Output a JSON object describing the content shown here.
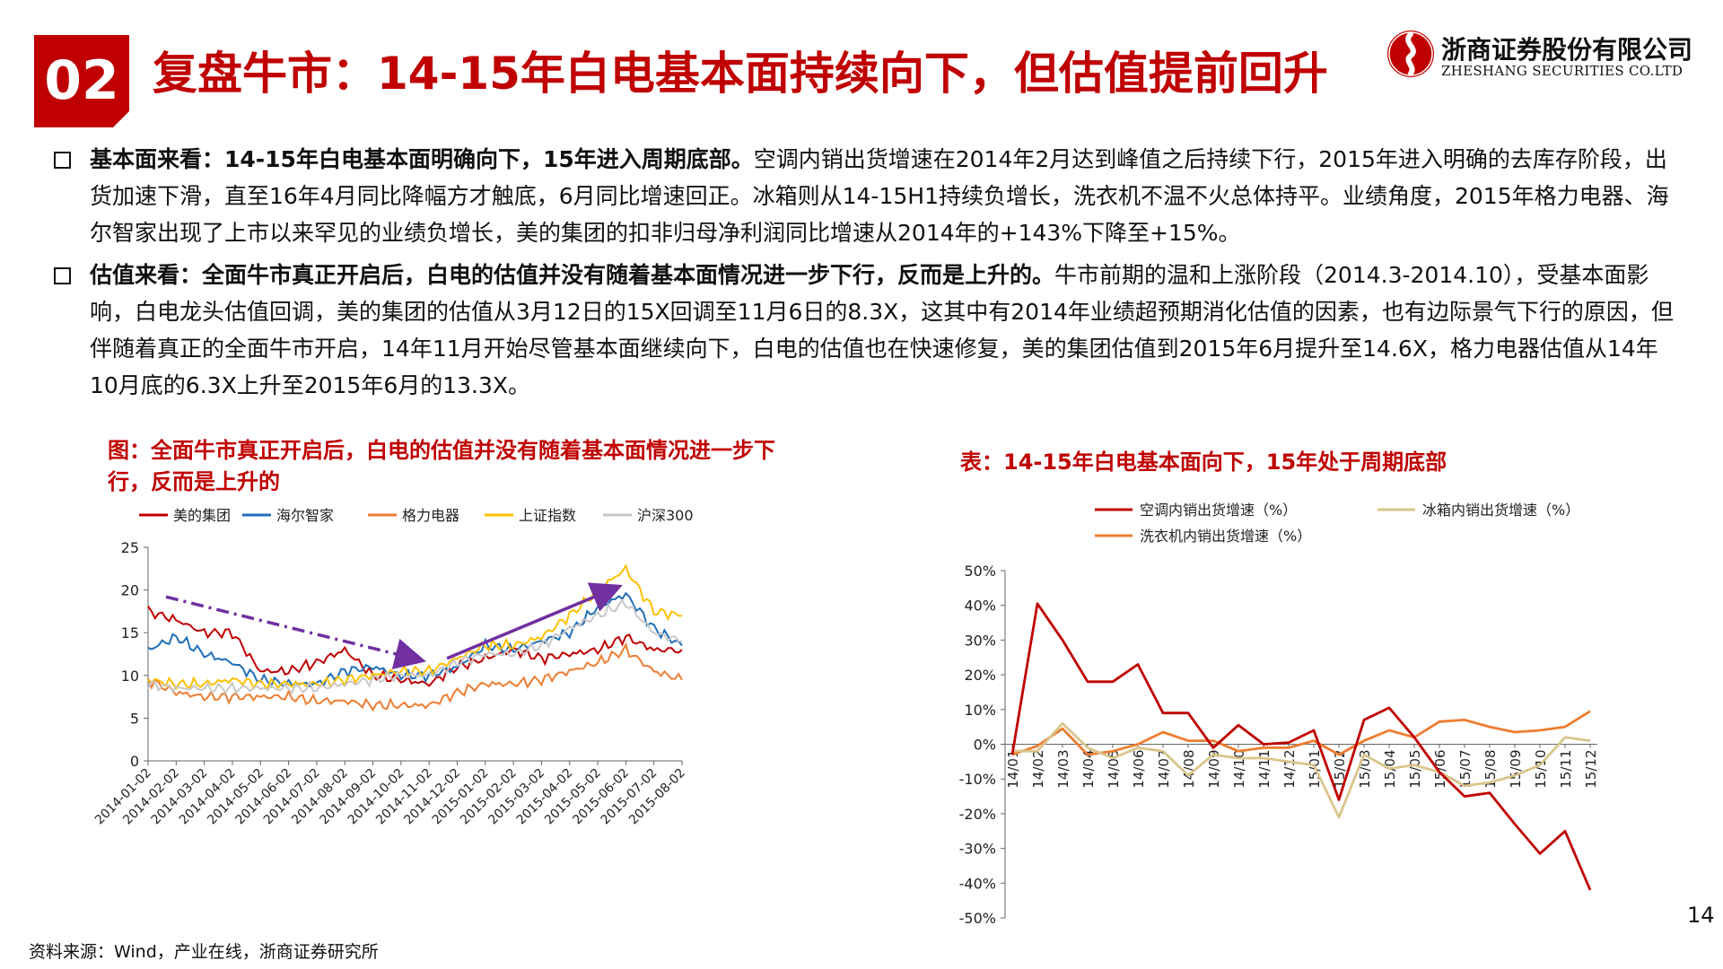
{
  "header": {
    "section_number": "02",
    "title": "复盘牛市：14-15年白电基本面持续向下，但估值提前回升"
  },
  "logo": {
    "name_cn": "浙商证券股份有限公司",
    "name_en": "ZHESHANG SECURITIES CO.LTD",
    "brand_color": "#c00000"
  },
  "bullets": [
    {
      "lead": "基本面来看：14-15年白电基本面明确向下，15年进入周期底部。",
      "body": "空调内销出货增速在2014年2月达到峰值之后持续下行，2015年进入明确的去库存阶段，出货加速下滑，直至16年4月同比降幅方才触底，6月同比增速回正。冰箱则从14-15H1持续负增长，洗衣机不温不火总体持平。业绩角度，2015年格力电器、海尔智家出现了上市以来罕见的业绩负增长，美的集团的扣非归母净利润同比增速从2014年的+143%下降至+15%。"
    },
    {
      "lead": "估值来看：全面牛市真正开启后，白电的估值并没有随着基本面情况进一步下行，反而是上升的。",
      "body": "牛市前期的温和上涨阶段（2014.3-2014.10），受基本面影响，白电龙头估值回调，美的集团的估值从3月12日的15X回调至11月6日的8.3X，这其中有2014年业绩超预期消化估值的因素，也有边际景气下行的原因，但伴随着真正的全面牛市开启，14年11月开始尽管基本面继续向下，白电的估值也在快速修复，美的集团估值到2015年6月提升至14.6X，格力电器估值从14年10月底的6.3X上升至2015年6月的13.3X。"
    }
  ],
  "left_chart_title": "图：全面牛市真正开启后，白电的估值并没有随着基本面情况进一步下行，反而是上升的",
  "right_chart_title": "表：14-15年白电基本面向下，15年处于周期底部",
  "source": "资料来源：Wind，产业在线，浙商证券研究所",
  "page_number": "14",
  "chart_data": [
    {
      "type": "line",
      "title": "全面牛市真正开启后，白电的估值并没有随着基本面情况进一步下行，反而是上升的",
      "xlabel": "",
      "ylabel": "",
      "ylim": [
        0,
        25
      ],
      "yticks": [
        "0",
        "5",
        "10",
        "15",
        "20",
        "25"
      ],
      "categories": [
        "2014-01-02",
        "2014-02-02",
        "2014-03-02",
        "2014-04-02",
        "2014-05-02",
        "2014-06-02",
        "2014-07-02",
        "2014-08-02",
        "2014-09-02",
        "2014-10-02",
        "2014-11-02",
        "2014-12-02",
        "2015-01-02",
        "2015-02-02",
        "2015-03-02",
        "2015-04-02",
        "2015-05-02",
        "2015-06-02",
        "2015-07-02",
        "2015-08-02"
      ],
      "series": [
        {
          "name": "美的集团",
          "color": "#c00000",
          "values": [
            17.5,
            16.5,
            15.0,
            15.0,
            10.5,
            10.5,
            11.5,
            13.0,
            10.0,
            9.5,
            9.0,
            11.0,
            12.0,
            13.0,
            12.0,
            12.5,
            13.0,
            14.5,
            13.0,
            13.0
          ]
        },
        {
          "name": "海尔智家",
          "color": "#1f6fb8",
          "values": [
            13.0,
            14.5,
            12.5,
            11.5,
            9.5,
            9.0,
            9.0,
            10.5,
            11.0,
            10.0,
            10.0,
            11.0,
            13.5,
            13.0,
            14.0,
            15.0,
            18.0,
            19.5,
            15.5,
            13.5
          ]
        },
        {
          "name": "格力电器",
          "color": "#ed7d31",
          "values": [
            9.5,
            8.0,
            7.5,
            7.5,
            7.5,
            7.5,
            7.0,
            7.0,
            6.5,
            6.5,
            6.5,
            8.0,
            9.0,
            9.0,
            9.5,
            10.5,
            11.5,
            13.0,
            10.5,
            9.5
          ]
        },
        {
          "name": "上证指数",
          "color": "#ffc000",
          "values": [
            9.5,
            9.0,
            9.0,
            9.5,
            9.0,
            9.0,
            9.0,
            9.5,
            10.0,
            10.5,
            10.5,
            12.0,
            13.5,
            13.5,
            14.5,
            17.0,
            20.0,
            22.5,
            17.5,
            17.0
          ]
        },
        {
          "name": "沪深300",
          "color": "#c8c8c8",
          "values": [
            9.0,
            8.5,
            8.5,
            8.5,
            8.5,
            8.5,
            8.5,
            9.0,
            9.5,
            10.0,
            10.0,
            11.5,
            12.5,
            12.5,
            13.5,
            15.5,
            17.0,
            18.5,
            15.0,
            14.0
          ]
        }
      ],
      "annotations": [
        {
          "type": "arrow",
          "style": "dash-dot",
          "color": "#7030a0",
          "from": {
            "x": "2014-01-02",
            "y": 19.2
          },
          "to": {
            "x": "2014-11-02",
            "y": 11.8
          }
        },
        {
          "type": "arrow",
          "style": "solid",
          "color": "#7030a0",
          "from": {
            "x": "2014-11-02",
            "y": 12.0
          },
          "to": {
            "x": "2015-06-02",
            "y": 20.3
          }
        }
      ]
    },
    {
      "type": "line",
      "title": "14-15年白电基本面向下，15年处于周期底部",
      "xlabel": "",
      "ylabel": "",
      "ylim": [
        -50,
        50
      ],
      "yticks": [
        "50%",
        "40%",
        "30%",
        "20%",
        "10%",
        "0%",
        "-10%",
        "-20%",
        "-30%",
        "-40%",
        "-50%"
      ],
      "categories": [
        "14/01",
        "14/02",
        "14/03",
        "14/04",
        "14/05",
        "14/06",
        "14/07",
        "14/08",
        "14/09",
        "14/10",
        "14/11",
        "14/12",
        "15/01",
        "15/02",
        "15/03",
        "15/04",
        "15/05",
        "15/06",
        "15/07",
        "15/08",
        "15/09",
        "15/10",
        "15/11",
        "15/12"
      ],
      "series": [
        {
          "name": "空调内销出货增速（%）",
          "color": "#c00000",
          "values": [
            -3,
            40.5,
            30,
            18,
            18,
            23,
            9,
            9,
            -1,
            5.5,
            0,
            0.5,
            4,
            -16,
            7,
            10.5,
            2,
            -8,
            -15,
            -14,
            -23,
            -31.5,
            -25,
            -42
          ]
        },
        {
          "name": "冰箱内销出货增速（%）",
          "color": "#d9c58a",
          "values": [
            -2,
            -2,
            6,
            -1,
            -4,
            -1,
            -2,
            -9,
            -3,
            -4,
            -4,
            -5,
            -6,
            -21,
            -3,
            -7,
            -6,
            -8,
            -12,
            -11,
            -9,
            -6,
            2,
            1
          ]
        },
        {
          "name": "洗衣机内销出货增速（%）",
          "color": "#ed7d31",
          "values": [
            -3,
            -0.5,
            4.5,
            -3,
            -2,
            0,
            3.5,
            1,
            1,
            -2,
            -1,
            -1,
            1,
            -3,
            1,
            4,
            2,
            6.5,
            7,
            5,
            3.5,
            4,
            5,
            9.5
          ]
        }
      ]
    }
  ]
}
